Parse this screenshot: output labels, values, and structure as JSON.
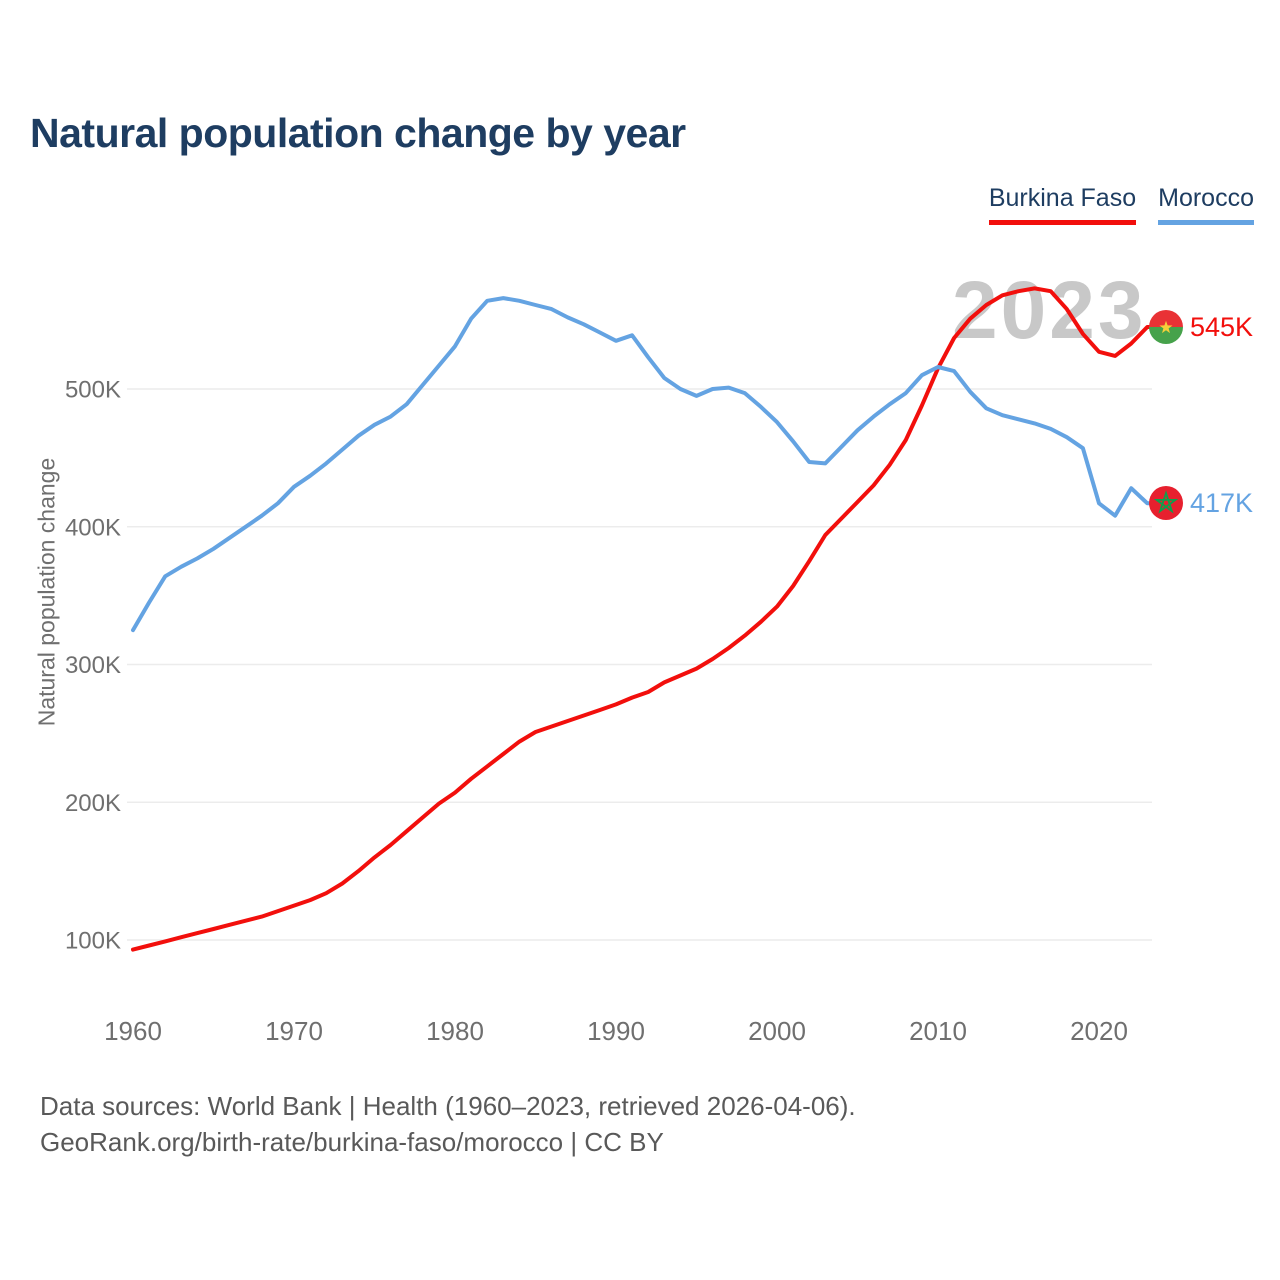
{
  "header": {
    "title": "Natural population change by year",
    "title_color": "#1e3d61"
  },
  "legend": [
    {
      "label": "Burkina Faso",
      "color": "#f20f0c"
    },
    {
      "label": "Morocco",
      "color": "#64a3e2"
    }
  ],
  "watermark": "2023",
  "y_axis": {
    "title": "Natural population change"
  },
  "end_labels": [
    {
      "series": "Burkina Faso",
      "value": "545K",
      "color": "#f20f0c",
      "flag": "burkina-faso-flag"
    },
    {
      "series": "Morocco",
      "value": "417K",
      "color": "#64a3e2",
      "flag": "morocco-flag"
    }
  ],
  "footer": {
    "line1": "Data sources: World Bank | Health (1960–2023, retrieved 2026-04-06).",
    "line2": "GeoRank.org/birth-rate/burkina-faso/morocco | CC BY"
  },
  "chart_data": {
    "type": "line",
    "title": "Natural population change by year",
    "xlabel": "",
    "ylabel": "Natural population change",
    "xlim": [
      1960,
      2023
    ],
    "ylim": [
      50,
      590
    ],
    "grid": true,
    "legend_position": "top-right",
    "y_ticks": [
      {
        "value": 100,
        "label": "100K"
      },
      {
        "value": 200,
        "label": "200K"
      },
      {
        "value": 300,
        "label": "300K"
      },
      {
        "value": 400,
        "label": "400K"
      },
      {
        "value": 500,
        "label": "500K"
      }
    ],
    "x_ticks": [
      {
        "value": 1960,
        "label": "1960"
      },
      {
        "value": 1970,
        "label": "1970"
      },
      {
        "value": 1980,
        "label": "1980"
      },
      {
        "value": 1990,
        "label": "1990"
      },
      {
        "value": 2000,
        "label": "2000"
      },
      {
        "value": 2010,
        "label": "2010"
      },
      {
        "value": 2020,
        "label": "2020"
      }
    ],
    "x": [
      1960,
      1961,
      1962,
      1963,
      1964,
      1965,
      1966,
      1967,
      1968,
      1969,
      1970,
      1971,
      1972,
      1973,
      1974,
      1975,
      1976,
      1977,
      1978,
      1979,
      1980,
      1981,
      1982,
      1983,
      1984,
      1985,
      1986,
      1987,
      1988,
      1989,
      1990,
      1991,
      1992,
      1993,
      1994,
      1995,
      1996,
      1997,
      1998,
      1999,
      2000,
      2001,
      2002,
      2003,
      2004,
      2005,
      2006,
      2007,
      2008,
      2009,
      2010,
      2011,
      2012,
      2013,
      2014,
      2015,
      2016,
      2017,
      2018,
      2019,
      2020,
      2021,
      2022,
      2023
    ],
    "unit": "thousands",
    "series": [
      {
        "name": "Burkina Faso",
        "color": "#f20f0c",
        "values": [
          93,
          96,
          99,
          102,
          105,
          108,
          111,
          114,
          117,
          121,
          125,
          129,
          134,
          141,
          150,
          160,
          169,
          179,
          189,
          199,
          207,
          217,
          226,
          235,
          244,
          251,
          255,
          259,
          263,
          267,
          271,
          276,
          280,
          287,
          292,
          297,
          304,
          312,
          321,
          331,
          342,
          357,
          375,
          394,
          406,
          418,
          430,
          445,
          463,
          488,
          515,
          537,
          551,
          561,
          568,
          571,
          573,
          571,
          558,
          540,
          527,
          524,
          533,
          545
        ]
      },
      {
        "name": "Morocco",
        "color": "#64a3e2",
        "values": [
          325,
          345,
          364,
          371,
          377,
          384,
          392,
          400,
          408,
          417,
          429,
          437,
          446,
          456,
          466,
          474,
          480,
          489,
          503,
          517,
          531,
          551,
          564,
          566,
          564,
          561,
          558,
          552,
          547,
          541,
          535,
          539,
          523,
          508,
          500,
          495,
          500,
          501,
          497,
          487,
          476,
          462,
          447,
          446,
          458,
          470,
          480,
          489,
          497,
          510,
          516,
          513,
          498,
          486,
          481,
          478,
          475,
          471,
          465,
          457,
          417,
          408,
          428,
          417
        ]
      }
    ]
  }
}
